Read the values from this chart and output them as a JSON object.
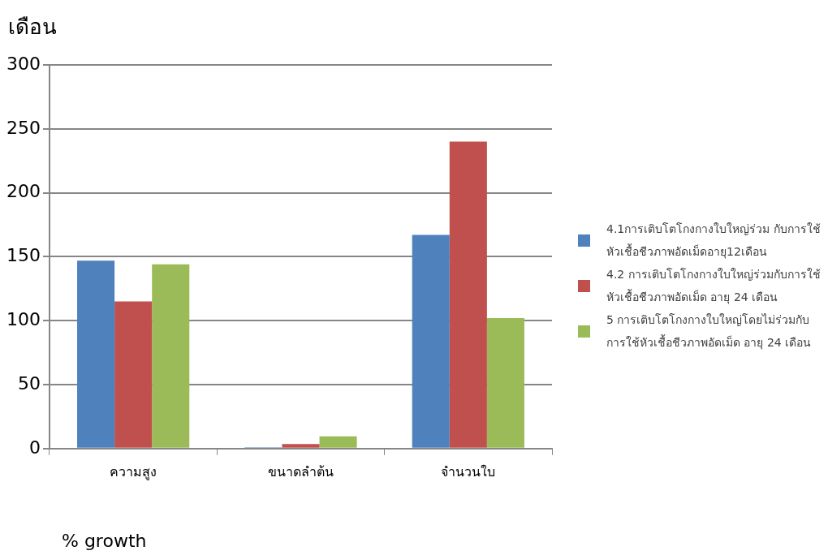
{
  "chart_data": {
    "type": "bar",
    "ylabel": "เดือน",
    "xlabel": "% growth",
    "categories": [
      "ความสูง",
      "ขนาดลำต้น",
      "จำนวนใบ"
    ],
    "series": [
      {
        "name": "4.1การเติบโตโกงกางใบใหญ่ร่วม กับการใช้หัวเชื้อชีวภาพอัดเม็ดอายุ12เดือน",
        "color": "#4f81bd",
        "values": [
          147,
          1,
          167
        ]
      },
      {
        "name": "4.2 การเติบโตโกงกางใบใหญ่ร่วมกับการใช้หัวเชื้อชีวภาพอัดเม็ด อายุ 24 เดือน",
        "color": "#c0504d",
        "values": [
          115,
          3.5,
          240
        ]
      },
      {
        "name": "5 การเติบโตโกงกางใบใหญ่โดยไม่ร่วมกับการใช้หัวเชื้อชีวภาพอัดเม็ด อายุ 24 เดือน",
        "color": "#9bbb59",
        "values": [
          144,
          9.5,
          102
        ]
      }
    ],
    "ylim": [
      0,
      300
    ],
    "yticks": [
      0,
      50,
      100,
      150,
      200,
      250,
      300
    ],
    "grid": "y",
    "legend": "right"
  }
}
